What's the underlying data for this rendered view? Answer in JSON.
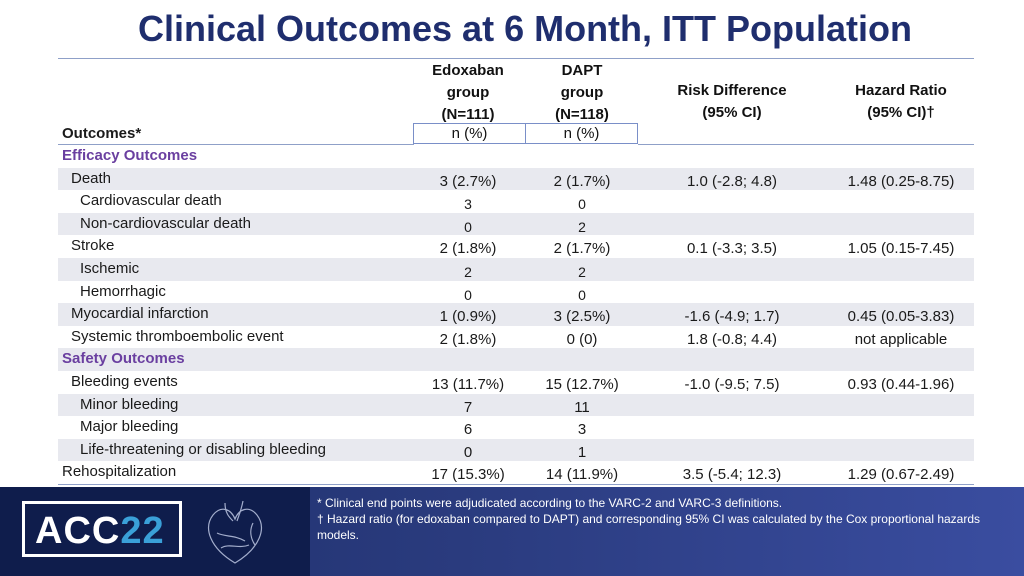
{
  "title": "Clinical Outcomes at 6 Month, ITT Population",
  "columns": {
    "edoxaban": {
      "line1": "Edoxaban",
      "line2": "group",
      "line3": "(N=111)",
      "sub": "n (%)"
    },
    "dapt": {
      "line1": "DAPT",
      "line2": "group",
      "line3": "(N=118)",
      "sub": "n (%)"
    },
    "risk_difference": {
      "line1": "Risk Difference",
      "line2": "(95% CI)"
    },
    "hazard_ratio": {
      "line1": "Hazard Ratio",
      "line2": "(95% CI)†"
    },
    "outcomes": "Outcomes*"
  },
  "rows": [
    {
      "label": "Efficacy Outcomes",
      "type": "section"
    },
    {
      "label": "Death",
      "level": 1,
      "edox": "3 (2.7%)",
      "dapt": "2 (1.7%)",
      "rd": "1.0 (-2.8; 4.8)",
      "hr": "1.48 (0.25-8.75)"
    },
    {
      "label": "Cardiovascular death",
      "level": 2,
      "edox": "3",
      "dapt": "0",
      "rd": "",
      "hr": ""
    },
    {
      "label": "Non-cardiovascular death",
      "level": 2,
      "edox": "0",
      "dapt": "2",
      "rd": "",
      "hr": ""
    },
    {
      "label": "Stroke",
      "level": 1,
      "edox": "2 (1.8%)",
      "dapt": "2 (1.7%)",
      "rd": "0.1 (-3.3; 3.5)",
      "hr": "1.05 (0.15-7.45)"
    },
    {
      "label": "Ischemic",
      "level": 2,
      "edox": "2",
      "dapt": "2",
      "rd": "",
      "hr": ""
    },
    {
      "label": "Hemorrhagic",
      "level": 2,
      "edox": "0",
      "dapt": "0",
      "rd": "",
      "hr": ""
    },
    {
      "label": "Myocardial infarction",
      "level": 1,
      "edox": "1 (0.9%)",
      "dapt": "3 (2.5%)",
      "rd": "-1.6 (-4.9; 1.7)",
      "hr": "0.45 (0.05-3.83)"
    },
    {
      "label": "Systemic thromboembolic event",
      "level": 1,
      "edox": "2 (1.8%)",
      "dapt": "0 (0)",
      "rd": "1.8 (-0.8; 4.4)",
      "hr": "not applicable"
    },
    {
      "label": "Safety Outcomes",
      "type": "section"
    },
    {
      "label": "Bleeding events",
      "level": 1,
      "edox": "13 (11.7%)",
      "dapt": "15 (12.7%)",
      "rd": "-1.0 (-9.5; 7.5)",
      "hr": "0.93 (0.44-1.96)"
    },
    {
      "label": "Minor bleeding",
      "level": 2,
      "edox": "7",
      "dapt": "11",
      "rd": "",
      "hr": ""
    },
    {
      "label": "Major bleeding",
      "level": 2,
      "edox": "6",
      "dapt": "3",
      "rd": "",
      "hr": ""
    },
    {
      "label": "Life-threatening or disabling bleeding",
      "level": 2,
      "edox": "0",
      "dapt": "1",
      "rd": "",
      "hr": ""
    },
    {
      "label": "Rehospitalization",
      "level": 0,
      "edox": "17 (15.3%)",
      "dapt": "14 (11.9%)",
      "rd": "3.5 (-5.4; 12.3)",
      "hr": "1.29 (0.67-2.49)"
    }
  ],
  "footnotes": {
    "note1": "* Clinical end points were adjudicated according to the VARC-2 and VARC-3 definitions.",
    "note2": "† Hazard ratio (for edoxaban compared to DAPT) and corresponding 95% CI was calculated by the Cox proportional hazards models."
  },
  "logo": {
    "text": "ACC",
    "number": "22"
  },
  "colors": {
    "title": "#1f2e6e",
    "section": "#6a3fa0",
    "shade": "#e8e9ef",
    "footer": "#1e2f6b"
  }
}
